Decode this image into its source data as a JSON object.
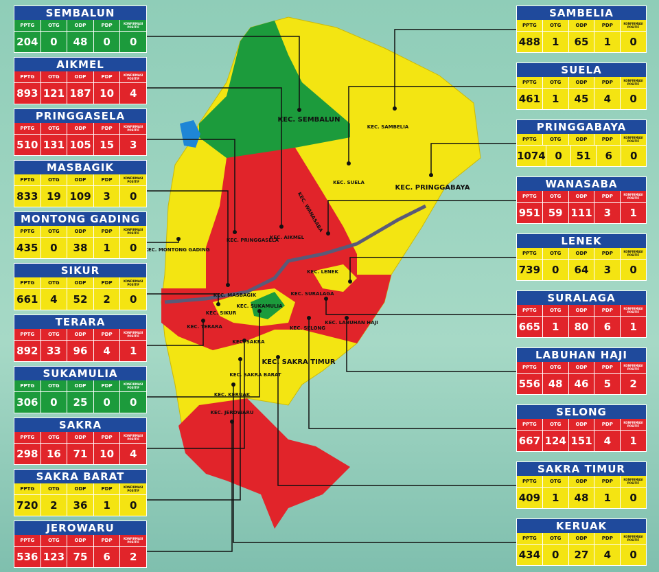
{
  "columns": [
    "PPTG",
    "OTG",
    "ODP",
    "PDP",
    "KONFIRMASI POSITIF"
  ],
  "panels": [
    {
      "name": "SEMBALUN",
      "color": "#1c9b3c",
      "values": [
        204,
        0,
        48,
        0,
        0
      ]
    },
    {
      "name": "AIKMEL",
      "color": "#e1242a",
      "values": [
        893,
        121,
        187,
        10,
        4
      ]
    },
    {
      "name": "PRINGGASELA",
      "color": "#e1242a",
      "values": [
        510,
        131,
        105,
        15,
        3
      ]
    },
    {
      "name": "MASBAGIK",
      "color": "#f4e412",
      "values": [
        833,
        19,
        109,
        3,
        0
      ]
    },
    {
      "name": "MONTONG GADING",
      "color": "#f4e412",
      "values": [
        435,
        0,
        38,
        1,
        0
      ]
    },
    {
      "name": "SIKUR",
      "color": "#f4e412",
      "values": [
        661,
        4,
        52,
        2,
        0
      ]
    },
    {
      "name": "TERARA",
      "color": "#e1242a",
      "values": [
        892,
        33,
        96,
        4,
        1
      ]
    },
    {
      "name": "SUKAMULIA",
      "color": "#1c9b3c",
      "values": [
        306,
        0,
        25,
        0,
        0
      ]
    },
    {
      "name": "SAKRA",
      "color": "#e1242a",
      "values": [
        298,
        16,
        71,
        10,
        4
      ]
    },
    {
      "name": "SAKRA BARAT",
      "color": "#f4e412",
      "values": [
        720,
        2,
        36,
        1,
        0
      ]
    },
    {
      "name": "JEROWARU",
      "color": "#e1242a",
      "values": [
        536,
        123,
        75,
        6,
        2
      ]
    },
    {
      "name": "SAMBELIA",
      "color": "#f4e412",
      "values": [
        488,
        1,
        65,
        1,
        0
      ]
    },
    {
      "name": "SUELA",
      "color": "#f4e412",
      "values": [
        461,
        1,
        45,
        4,
        0
      ]
    },
    {
      "name": "PRINGGABAYA",
      "color": "#f4e412",
      "values": [
        1074,
        0,
        51,
        6,
        0
      ]
    },
    {
      "name": "WANASABA",
      "color": "#e1242a",
      "values": [
        951,
        59,
        111,
        3,
        1
      ]
    },
    {
      "name": "LENEK",
      "color": "#f4e412",
      "values": [
        739,
        0,
        64,
        3,
        0
      ]
    },
    {
      "name": "SURALAGA",
      "color": "#e1242a",
      "values": [
        665,
        1,
        80,
        6,
        1
      ]
    },
    {
      "name": "LABUHAN HAJI",
      "color": "#e1242a",
      "values": [
        556,
        48,
        46,
        5,
        2
      ]
    },
    {
      "name": "SELONG",
      "color": "#e1242a",
      "values": [
        667,
        124,
        151,
        4,
        1
      ]
    },
    {
      "name": "SAKRA TIMUR",
      "color": "#f4e412",
      "values": [
        409,
        1,
        48,
        1,
        0
      ]
    },
    {
      "name": "KERUAK",
      "color": "#f4e412",
      "values": [
        434,
        0,
        27,
        4,
        0
      ]
    }
  ],
  "map_labels": [
    "KEC. SEMBALUN",
    "KEC. AIKMEL",
    "KEC. PRINGGASELA",
    "KEC. MASBAGIK",
    "KEC. MONTONG GADING",
    "KEC. SIKUR",
    "KEC. TERARA",
    "KEC. SUKAMULIA",
    "KEC. SAKRA",
    "KEC. SAKRA BARAT",
    "KEC. JEROWARU",
    "KEC. SAMBELIA",
    "KEC. SUELA",
    "KEC. PRINGGABAYA",
    "KEC. WANASABA",
    "KEC. LENEK",
    "KEC. SURALAGA",
    "KEC. LABUHAN HAJI",
    "KEC. SELONG",
    "KEC. SAKRA TIMUR",
    "KEC. KERUAK"
  ]
}
